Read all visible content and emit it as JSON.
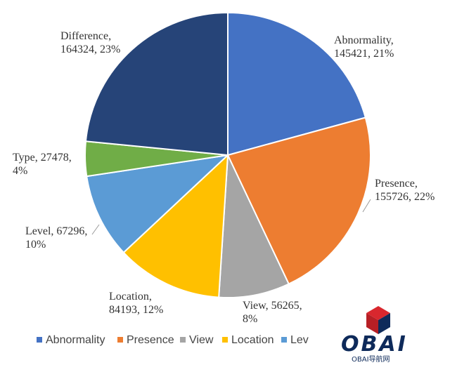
{
  "chart_data": {
    "type": "pie",
    "title": "",
    "slices": [
      {
        "name": "Abnormality",
        "value": 145421,
        "percent": "21%",
        "color": "#4472C4",
        "label_lines": [
          "Abnormality,",
          "145421, 21%"
        ]
      },
      {
        "name": "Presence",
        "value": 155726,
        "percent": "22%",
        "color": "#ED7D31",
        "label_lines": [
          "Presence,",
          "155726, 22%"
        ]
      },
      {
        "name": "View",
        "value": 56265,
        "percent": "8%",
        "color": "#A5A5A5",
        "label_lines": [
          "View, 56265,",
          "8%"
        ]
      },
      {
        "name": "Location",
        "value": 84193,
        "percent": "12%",
        "color": "#FFC000",
        "label_lines": [
          "Location,",
          "84193, 12%"
        ]
      },
      {
        "name": "Level",
        "value": 67296,
        "percent": "10%",
        "color": "#5B9BD5",
        "label_lines": [
          "Level, 67296,",
          "10%"
        ]
      },
      {
        "name": "Type",
        "value": 27478,
        "percent": "4%",
        "color": "#70AD47",
        "label_lines": [
          "Type, 27478,",
          "4%"
        ]
      },
      {
        "name": "Difference",
        "value": 164324,
        "percent": "23%",
        "color": "#264478",
        "label_lines": [
          "Difference,",
          "164324, 23%"
        ]
      }
    ],
    "legend": {
      "placement": "bottom",
      "entries": [
        "Abnormality",
        "Presence",
        "View",
        "Location",
        "Lev"
      ]
    }
  },
  "watermark": {
    "logo_text": "OBAI",
    "logo_sub": "OBAI导航网",
    "colors": {
      "cube_red": "#D9272E",
      "cube_dark": "#0E2A5A",
      "text": "#0E2A5A"
    }
  }
}
